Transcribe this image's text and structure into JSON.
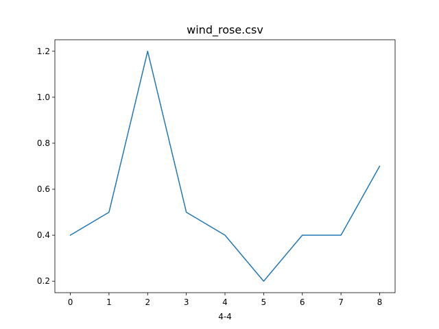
{
  "chart_data": {
    "type": "line",
    "title": "wind_rose.csv",
    "xlabel": "4-4",
    "ylabel": "",
    "x": [
      0,
      1,
      2,
      3,
      4,
      5,
      6,
      7,
      8
    ],
    "series": [
      {
        "values": [
          0.4,
          0.5,
          1.2,
          0.5,
          0.4,
          0.2,
          0.4,
          0.4,
          0.7
        ],
        "color": "#1f77b4"
      }
    ],
    "xticks": [
      "0",
      "1",
      "2",
      "3",
      "4",
      "5",
      "6",
      "7",
      "8"
    ],
    "yticks": [
      "0.2",
      "0.4",
      "0.6",
      "0.8",
      "1.0",
      "1.2"
    ],
    "xlim": [
      -0.4,
      8.4
    ],
    "ylim": [
      0.15,
      1.25
    ],
    "grid": false,
    "legend": false
  }
}
